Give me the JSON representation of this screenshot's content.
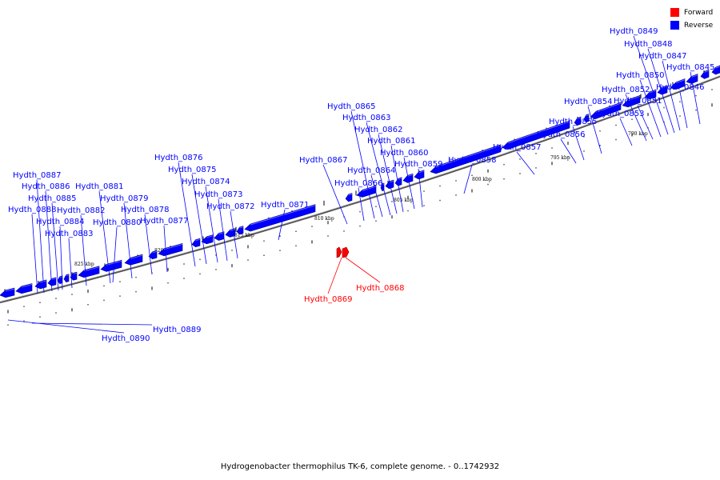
{
  "legend": [
    {
      "label": "Forward",
      "color": "#ff0000"
    },
    {
      "label": "Reverse",
      "color": "#0000ff"
    }
  ],
  "caption": "Hydrogenobacter thermophilus TK-6, complete genome. - 0..1742932",
  "colors": {
    "forward": "#ff0000",
    "reverse": "#0000ff",
    "backbone": "#777777"
  },
  "scale_labels": [
    "825 kbp",
    "820 kbp",
    "815 kbp",
    "810 kbp",
    "805 kbp",
    "800 kbp",
    "795 kbp",
    "790 kbp"
  ],
  "genes": [
    {
      "name": "Hydth_0845",
      "strand": "reverse"
    },
    {
      "name": "Hydth_0846",
      "strand": "reverse"
    },
    {
      "name": "Hydth_0847",
      "strand": "reverse"
    },
    {
      "name": "Hydth_0848",
      "strand": "reverse"
    },
    {
      "name": "Hydth_0849",
      "strand": "reverse"
    },
    {
      "name": "Hydth_0850",
      "strand": "reverse"
    },
    {
      "name": "Hydth_0851",
      "strand": "reverse"
    },
    {
      "name": "Hydth_0852",
      "strand": "reverse"
    },
    {
      "name": "Hydth_0853",
      "strand": "reverse"
    },
    {
      "name": "Hydth_0854",
      "strand": "reverse"
    },
    {
      "name": "Hydth_0855",
      "strand": "reverse"
    },
    {
      "name": "Hydth_0856",
      "strand": "reverse"
    },
    {
      "name": "Hydth_0857",
      "strand": "reverse"
    },
    {
      "name": "Hydth_0858",
      "strand": "reverse"
    },
    {
      "name": "Hydth_0859",
      "strand": "reverse"
    },
    {
      "name": "Hydth_0860",
      "strand": "reverse"
    },
    {
      "name": "Hydth_0861",
      "strand": "reverse"
    },
    {
      "name": "Hydth_0862",
      "strand": "reverse"
    },
    {
      "name": "Hydth_0863",
      "strand": "reverse"
    },
    {
      "name": "Hydth_0864",
      "strand": "reverse"
    },
    {
      "name": "Hydth_0865",
      "strand": "reverse"
    },
    {
      "name": "Hydth_0866",
      "strand": "reverse"
    },
    {
      "name": "Hydth_0867",
      "strand": "reverse"
    },
    {
      "name": "Hydth_0868",
      "strand": "forward"
    },
    {
      "name": "Hydth_0869",
      "strand": "forward"
    },
    {
      "name": "Hydth_0871",
      "strand": "reverse"
    },
    {
      "name": "Hydth_0872",
      "strand": "reverse"
    },
    {
      "name": "Hydth_0873",
      "strand": "reverse"
    },
    {
      "name": "Hydth_0874",
      "strand": "reverse"
    },
    {
      "name": "Hydth_0875",
      "strand": "reverse"
    },
    {
      "name": "Hydth_0876",
      "strand": "reverse"
    },
    {
      "name": "Hydth_0877",
      "strand": "reverse"
    },
    {
      "name": "Hydth_0878",
      "strand": "reverse"
    },
    {
      "name": "Hydth_0879",
      "strand": "reverse"
    },
    {
      "name": "Hydth_0880",
      "strand": "reverse"
    },
    {
      "name": "Hydth_0881",
      "strand": "reverse"
    },
    {
      "name": "Hydth_0882",
      "strand": "reverse"
    },
    {
      "name": "Hydth_0883",
      "strand": "reverse"
    },
    {
      "name": "Hydth_0884",
      "strand": "reverse"
    },
    {
      "name": "Hydth_0885",
      "strand": "reverse"
    },
    {
      "name": "Hydth_0886",
      "strand": "reverse"
    },
    {
      "name": "Hydth_0887",
      "strand": "reverse"
    },
    {
      "name": "Hydth_0888",
      "strand": "reverse"
    },
    {
      "name": "Hydth_0889",
      "strand": "reverse"
    },
    {
      "name": "Hydth_0890",
      "strand": "reverse"
    }
  ]
}
